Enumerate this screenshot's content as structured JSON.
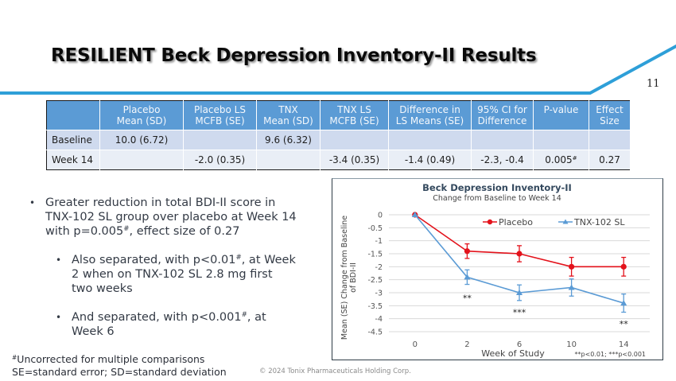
{
  "header": {
    "title": "RESILIENT Beck Depression Inventory-II Results",
    "page_number": "11",
    "accent_color": "#2e9fd8"
  },
  "table": {
    "columns": [
      {
        "line1": "",
        "line2": ""
      },
      {
        "line1": "Placebo",
        "line2": "Mean (SD)"
      },
      {
        "line1": "Placebo LS",
        "line2": "MCFB (SE)"
      },
      {
        "line1": "TNX",
        "line2": "Mean (SD)"
      },
      {
        "line1": "TNX LS",
        "line2": "MCFB (SE)"
      },
      {
        "line1": "Difference in",
        "line2": "LS Means (SE)"
      },
      {
        "line1": "95% CI for",
        "line2": "Difference"
      },
      {
        "line1": "P-value",
        "line2": ""
      },
      {
        "line1": "Effect",
        "line2": "Size"
      }
    ],
    "rows": [
      {
        "label": "Baseline",
        "placebo_mean": "10.0 (6.72)",
        "placebo_ls": "",
        "tnx_mean": "9.6 (6.32)",
        "tnx_ls": "",
        "diff": "",
        "ci": "",
        "p_value": "",
        "p_sup": "",
        "effect": ""
      },
      {
        "label": "Week 14",
        "placebo_mean": "",
        "placebo_ls": "-2.0 (0.35)",
        "tnx_mean": "",
        "tnx_ls": "-3.4 (0.35)",
        "diff": "-1.4 (0.49)",
        "ci": "-2.3, -0.4",
        "p_value": "0.005",
        "p_sup": "#",
        "effect": "0.27"
      }
    ],
    "header_color": "#5b9bd5"
  },
  "bullets": {
    "b1": {
      "l1": "Greater reduction in total BDI-II score in",
      "l2": "TNX-102 SL group over placebo at Week 14",
      "l3a": "with p=0.005",
      "sup": "#",
      "l3b": ", effect size of 0.27"
    },
    "b2": {
      "l1a": "Also separated, with p<0.01",
      "sup": "#",
      "l1b": ", at Week",
      "l2": "2 when on TNX-102 SL 2.8 mg first",
      "l3": "two weeks"
    },
    "b3": {
      "l1a": "And separated, with p<0.001",
      "sup": "#",
      "l1b": ", at",
      "l2": "Week 6"
    }
  },
  "footnotes": {
    "sup": "#",
    "line1": "Uncorrected for multiple comparisons",
    "line2": "SE=standard error; SD=standard deviation",
    "copyright": "© 2024 Tonix Pharmaceuticals Holding Corp."
  },
  "chart_data": {
    "type": "line",
    "title": "Beck Depression Inventory-II",
    "subtitle": "Change from Baseline to Week 14",
    "ylabel_line1": "Mean (SE) Change from Baseline",
    "ylabel_line2": "of BDI-II",
    "xlabel": "Week of Study",
    "footnote": "**p<0.01; ***p<0.001",
    "categories": [
      "0",
      "2",
      "6",
      "10",
      "14"
    ],
    "ylim": [
      -4.5,
      0
    ],
    "yticks": [
      0,
      -0.5,
      -1,
      -1.5,
      -2,
      -2.5,
      -3,
      -3.5,
      -4,
      -4.5
    ],
    "grid": true,
    "legend_position": "top-right",
    "series": [
      {
        "name": "Placebo",
        "color": "#e3121b",
        "marker": "circle",
        "values": [
          0,
          -1.4,
          -1.5,
          -2.0,
          -2.0
        ],
        "se": [
          0,
          0.28,
          0.31,
          0.36,
          0.36
        ]
      },
      {
        "name": "TNX-102 SL",
        "color": "#5b9bd5",
        "marker": "triangle",
        "values": [
          0,
          -2.4,
          -3.0,
          -2.8,
          -3.4
        ],
        "se": [
          0,
          0.28,
          0.3,
          0.33,
          0.35
        ]
      }
    ],
    "annotations": [
      {
        "category": "2",
        "y": -3.2,
        "text": "**"
      },
      {
        "category": "6",
        "y": -3.75,
        "text": "***"
      },
      {
        "category": "14",
        "y": -4.2,
        "text": "**"
      }
    ]
  }
}
